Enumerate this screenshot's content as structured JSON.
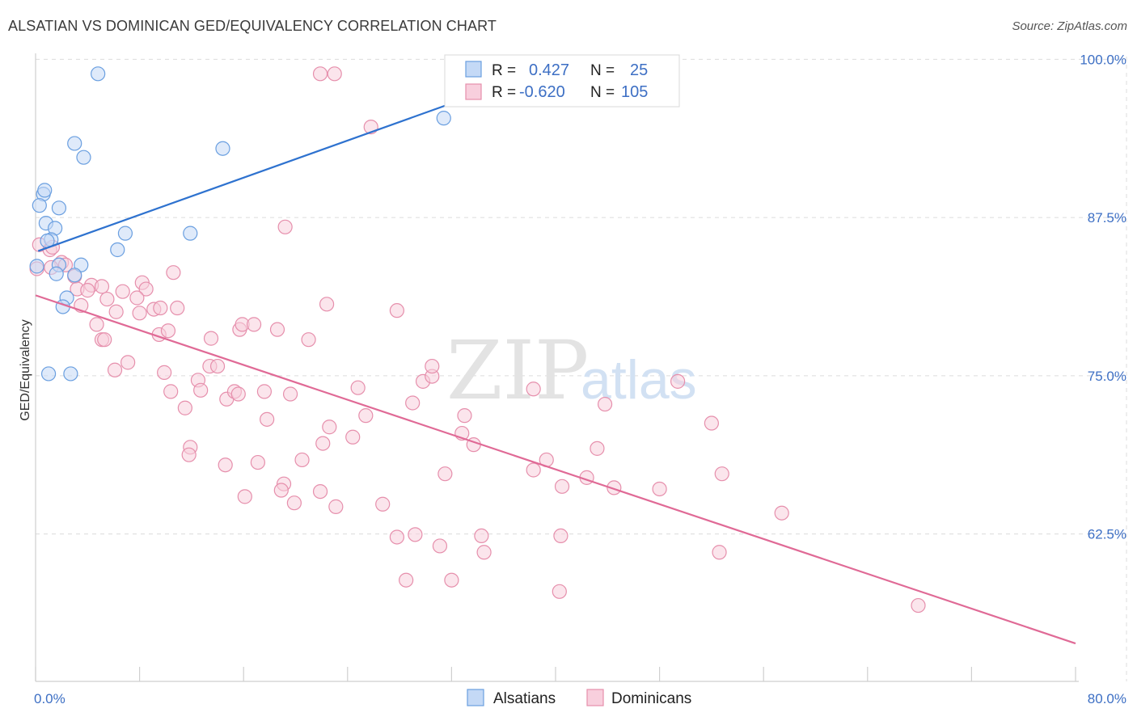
{
  "header": {
    "title": "ALSATIAN VS DOMINICAN GED/EQUIVALENCY CORRELATION CHART",
    "source": "Source: ZipAtlas.com"
  },
  "watermark": {
    "zip": "ZIP",
    "atlas": "atlas"
  },
  "colors": {
    "alsatians": "#6a9fe0",
    "alsatians_fill": "#c4d9f6",
    "alsatians_line": "#2e72cf",
    "dominicans": "#e68fac",
    "dominicans_fill": "#f8cfdd",
    "dominicans_line": "#e06a96",
    "grid": "#dcdcdc",
    "tick_text": "#3d6fc4"
  },
  "chart_data": {
    "type": "scatter",
    "title": "ALSATIAN VS DOMINICAN GED/EQUIVALENCY CORRELATION CHART",
    "xlabel": "",
    "ylabel": "GED/Equivalency",
    "xlim": [
      0,
      80
    ],
    "ylim": [
      52,
      102
    ],
    "x_tick_labels": [
      {
        "value": 0,
        "label": "0.0%"
      },
      {
        "value": 80,
        "label": "80.0%"
      }
    ],
    "y_tick_labels": [
      {
        "value": 100,
        "label": "100.0%"
      },
      {
        "value": 87.5,
        "label": "87.5%"
      },
      {
        "value": 75,
        "label": "75.0%"
      },
      {
        "value": 62.5,
        "label": "62.5%"
      }
    ],
    "grid": true,
    "legend": {
      "placement": "top-center",
      "entries": [
        {
          "r_label": "R =",
          "r_value": "0.427",
          "n_label": "N =",
          "n_value": "25"
        },
        {
          "r_label": "R =",
          "r_value": "-0.620",
          "n_label": "N =",
          "n_value": "105"
        }
      ]
    },
    "bottom_legend": [
      "Alsatians",
      "Dominicans"
    ],
    "series": [
      {
        "name": "Alsatians",
        "trendline": [
          [
            0.2,
            86.0
          ],
          [
            40.0,
            100.6
          ]
        ],
        "points": [
          [
            4.8,
            100.0
          ],
          [
            3.0,
            94.5
          ],
          [
            3.7,
            93.4
          ],
          [
            14.4,
            94.1
          ],
          [
            31.4,
            96.5
          ],
          [
            0.6,
            90.5
          ],
          [
            0.7,
            90.8
          ],
          [
            0.3,
            89.6
          ],
          [
            1.8,
            89.4
          ],
          [
            0.8,
            88.2
          ],
          [
            1.5,
            87.8
          ],
          [
            6.9,
            87.4
          ],
          [
            11.9,
            87.4
          ],
          [
            1.2,
            86.9
          ],
          [
            0.9,
            86.8
          ],
          [
            6.3,
            86.1
          ],
          [
            0.1,
            84.8
          ],
          [
            1.8,
            84.9
          ],
          [
            3.5,
            84.9
          ],
          [
            1.6,
            84.2
          ],
          [
            3.0,
            84.1
          ],
          [
            2.4,
            82.3
          ],
          [
            2.1,
            81.6
          ],
          [
            1.0,
            76.3
          ],
          [
            2.7,
            76.3
          ]
        ]
      },
      {
        "name": "Dominicans",
        "trendline": [
          [
            0.0,
            82.5
          ],
          [
            80.0,
            55.0
          ]
        ],
        "points": [
          [
            21.9,
            100.0
          ],
          [
            23.0,
            100.0
          ],
          [
            25.8,
            95.8
          ],
          [
            19.2,
            87.9
          ],
          [
            0.3,
            86.5
          ],
          [
            1.1,
            86.1
          ],
          [
            1.3,
            86.3
          ],
          [
            2.0,
            85.1
          ],
          [
            2.3,
            84.9
          ],
          [
            0.1,
            84.6
          ],
          [
            1.2,
            84.7
          ],
          [
            3.0,
            84.0
          ],
          [
            10.6,
            84.3
          ],
          [
            8.2,
            83.5
          ],
          [
            4.3,
            83.3
          ],
          [
            3.2,
            83.0
          ],
          [
            5.1,
            83.2
          ],
          [
            6.7,
            82.8
          ],
          [
            8.5,
            83.0
          ],
          [
            4.0,
            82.9
          ],
          [
            5.5,
            82.2
          ],
          [
            7.8,
            82.3
          ],
          [
            9.1,
            81.4
          ],
          [
            9.6,
            81.5
          ],
          [
            10.9,
            81.5
          ],
          [
            3.5,
            81.7
          ],
          [
            6.2,
            81.2
          ],
          [
            22.4,
            81.8
          ],
          [
            27.8,
            81.3
          ],
          [
            8.0,
            81.1
          ],
          [
            4.7,
            80.2
          ],
          [
            9.5,
            79.4
          ],
          [
            10.2,
            79.7
          ],
          [
            15.7,
            79.8
          ],
          [
            15.9,
            80.2
          ],
          [
            16.8,
            80.2
          ],
          [
            18.6,
            79.8
          ],
          [
            5.1,
            79.0
          ],
          [
            5.3,
            79.0
          ],
          [
            13.5,
            79.1
          ],
          [
            21.0,
            79.0
          ],
          [
            6.1,
            76.6
          ],
          [
            7.1,
            77.2
          ],
          [
            9.9,
            76.4
          ],
          [
            12.5,
            75.8
          ],
          [
            13.4,
            76.9
          ],
          [
            14.0,
            76.9
          ],
          [
            12.7,
            75.0
          ],
          [
            10.4,
            74.9
          ],
          [
            14.7,
            74.3
          ],
          [
            15.3,
            74.9
          ],
          [
            15.6,
            74.7
          ],
          [
            17.6,
            74.9
          ],
          [
            19.6,
            74.7
          ],
          [
            24.8,
            75.2
          ],
          [
            29.8,
            75.7
          ],
          [
            30.5,
            76.1
          ],
          [
            30.5,
            76.9
          ],
          [
            38.3,
            75.1
          ],
          [
            43.8,
            73.9
          ],
          [
            49.4,
            75.7
          ],
          [
            11.5,
            73.6
          ],
          [
            17.8,
            72.7
          ],
          [
            22.6,
            72.1
          ],
          [
            25.4,
            73.0
          ],
          [
            29.0,
            74.0
          ],
          [
            33.0,
            73.0
          ],
          [
            52.0,
            72.4
          ],
          [
            24.4,
            71.3
          ],
          [
            32.8,
            71.6
          ],
          [
            11.9,
            70.5
          ],
          [
            22.1,
            70.8
          ],
          [
            11.8,
            69.9
          ],
          [
            14.6,
            69.1
          ],
          [
            17.1,
            69.3
          ],
          [
            20.5,
            69.5
          ],
          [
            33.7,
            70.7
          ],
          [
            38.3,
            68.7
          ],
          [
            39.3,
            69.5
          ],
          [
            43.2,
            70.4
          ],
          [
            31.5,
            68.4
          ],
          [
            42.4,
            68.1
          ],
          [
            52.8,
            68.4
          ],
          [
            19.1,
            67.6
          ],
          [
            18.9,
            67.1
          ],
          [
            21.9,
            67.0
          ],
          [
            40.5,
            67.4
          ],
          [
            44.5,
            67.3
          ],
          [
            48.0,
            67.2
          ],
          [
            16.1,
            66.6
          ],
          [
            19.9,
            66.1
          ],
          [
            23.1,
            65.8
          ],
          [
            26.7,
            66.0
          ],
          [
            57.4,
            65.3
          ],
          [
            27.8,
            63.4
          ],
          [
            29.2,
            63.6
          ],
          [
            34.3,
            63.5
          ],
          [
            40.4,
            63.5
          ],
          [
            31.1,
            62.7
          ],
          [
            34.5,
            62.2
          ],
          [
            52.6,
            62.2
          ],
          [
            28.5,
            60.0
          ],
          [
            32.0,
            60.0
          ],
          [
            40.3,
            59.1
          ],
          [
            67.9,
            58.0
          ]
        ]
      }
    ]
  }
}
